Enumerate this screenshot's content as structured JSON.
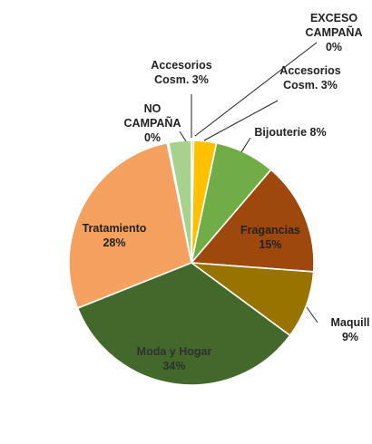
{
  "chart_data": {
    "type": "pie",
    "title": "",
    "slices": [
      {
        "label_lines": [
          "EXCESO",
          "CAMPAÑA",
          "0%"
        ],
        "value": 0.3,
        "color": "#FFC000",
        "text_color": "#222222"
      },
      {
        "label_lines": [
          "Accesorios",
          "Cosm. 3%"
        ],
        "value": 3,
        "color": "#FFC000",
        "text_color": "#222222"
      },
      {
        "label_lines": [
          "Bijouterie 8%"
        ],
        "value": 8,
        "color": "#70AD47",
        "text_color": "#222222"
      },
      {
        "label_lines": [
          "Fragancias",
          "15%"
        ],
        "value": 15,
        "color": "#9E480E",
        "text_color": "#222222"
      },
      {
        "label_lines": [
          "Maquill",
          "9%"
        ],
        "value": 9,
        "color": "#997300",
        "text_color": "#222222"
      },
      {
        "label_lines": [
          "Moda y Hogar",
          "34%"
        ],
        "value": 34,
        "color": "#43682B",
        "text_color": "#2f2f2f"
      },
      {
        "label_lines": [
          "Tratamiento",
          "28%"
        ],
        "value": 28,
        "color": "#F4A15F",
        "text_color": "#222222"
      },
      {
        "label_lines": [
          "NO",
          "CAMPAÑA",
          "0%"
        ],
        "value": 0.2,
        "color": "#ED7D31",
        "text_color": "#222222"
      },
      {
        "label_lines": [
          "Accesorios",
          "Cosm. 3%"
        ],
        "value": 3,
        "color": "#A9D18E",
        "text_color": "#222222"
      }
    ]
  }
}
